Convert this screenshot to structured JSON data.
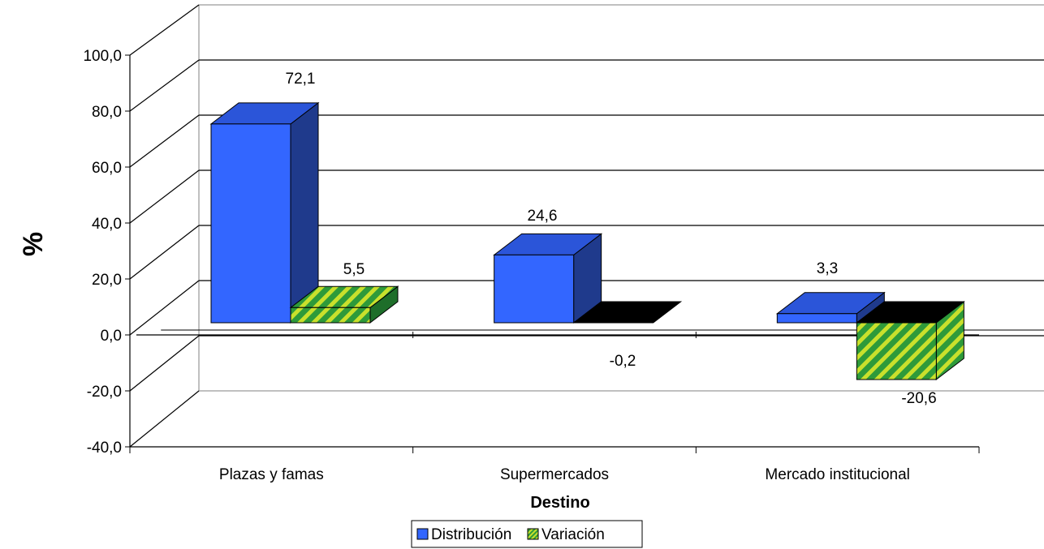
{
  "chart_data": {
    "type": "bar",
    "title": "",
    "xlabel": "Destino",
    "ylabel": "%",
    "categories": [
      "Plazas y famas",
      "Supermercados",
      "Mercado institucional"
    ],
    "series": [
      {
        "name": "Distribución",
        "values": [
          72.1,
          24.6,
          3.3
        ],
        "color": "#3366ff"
      },
      {
        "name": "Variación",
        "values": [
          5.5,
          -0.2,
          -20.6
        ],
        "color": "#66cc33",
        "pattern": "diagonal-stripes"
      }
    ],
    "data_labels": {
      "series_0": [
        "72,1",
        "24,6",
        "3,3"
      ],
      "series_1": [
        "5,5",
        "-0,2",
        "-20,6"
      ]
    },
    "ylim": [
      -40,
      100
    ],
    "yticks": [
      -40,
      -20,
      0,
      20,
      40,
      60,
      80,
      100
    ],
    "ytick_labels": [
      "-40,0",
      "-20,0",
      "0,0",
      "20,0",
      "40,0",
      "60,0",
      "80,0",
      "100,0"
    ],
    "grid": true,
    "style": "3d-clustered-column",
    "legend": "bottom-center"
  }
}
